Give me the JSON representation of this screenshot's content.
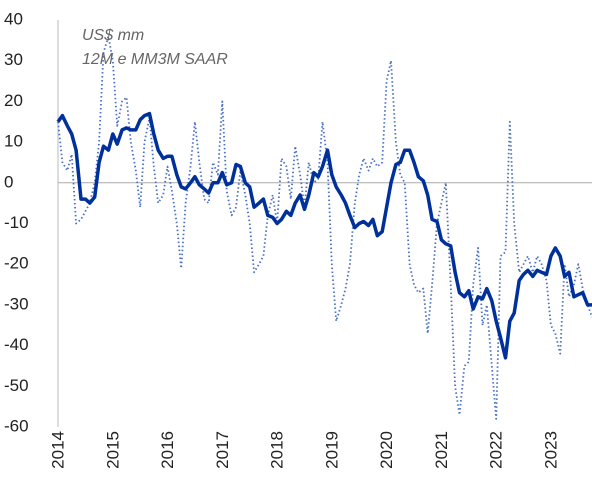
{
  "chart_data": {
    "type": "line",
    "subtitle": [
      "US$ mm",
      "12M e MM3M SAAR"
    ],
    "x": [
      2014,
      2014.08,
      2014.17,
      2014.25,
      2014.33,
      2014.42,
      2014.5,
      2014.58,
      2014.67,
      2014.75,
      2014.83,
      2014.92,
      2015,
      2015.08,
      2015.17,
      2015.25,
      2015.33,
      2015.42,
      2015.5,
      2015.58,
      2015.67,
      2015.75,
      2015.83,
      2015.92,
      2016,
      2016.08,
      2016.17,
      2016.25,
      2016.33,
      2016.42,
      2016.5,
      2016.58,
      2016.67,
      2016.75,
      2016.83,
      2016.92,
      2017,
      2017.08,
      2017.17,
      2017.25,
      2017.33,
      2017.42,
      2017.5,
      2017.58,
      2017.67,
      2017.75,
      2017.83,
      2017.92,
      2018,
      2018.08,
      2018.17,
      2018.25,
      2018.33,
      2018.42,
      2018.5,
      2018.58,
      2018.67,
      2018.75,
      2018.83,
      2018.92,
      2019,
      2019.08,
      2019.17,
      2019.25,
      2019.33,
      2019.42,
      2019.5,
      2019.58,
      2019.67,
      2019.75,
      2019.83,
      2019.92,
      2020,
      2020.08,
      2020.17,
      2020.25,
      2020.33,
      2020.42,
      2020.5,
      2020.58,
      2020.67,
      2020.75,
      2020.83,
      2020.92,
      2021,
      2021.08,
      2021.17,
      2021.25,
      2021.33,
      2021.42,
      2021.5,
      2021.58,
      2021.67,
      2021.75,
      2021.83,
      2021.92,
      2022,
      2022.08,
      2022.17,
      2022.25,
      2022.33,
      2022.42,
      2022.5,
      2022.58,
      2022.67,
      2022.75,
      2022.83,
      2022.92,
      2023,
      2023.08,
      2023.17,
      2023.25,
      2023.33,
      2023.42,
      2023.5,
      2023.58,
      2023.67,
      2023.75
    ],
    "series": [
      {
        "color": "#4a6fc4",
        "dash": true,
        "values": [
          15,
          5,
          3,
          7,
          -10,
          -9,
          -7,
          -5,
          0,
          10,
          32,
          36,
          30,
          14,
          20,
          21,
          10,
          3,
          -6,
          10,
          16,
          4,
          -5,
          -3,
          4,
          -2,
          -10,
          -21,
          -5,
          4,
          15,
          5,
          -4,
          -5,
          5,
          2,
          20,
          -2,
          -8,
          -6,
          3,
          -3,
          -10,
          -22,
          -20,
          -18,
          -8,
          -3,
          -10,
          6,
          4,
          -4,
          9,
          2,
          -6,
          5,
          0,
          1,
          15,
          5,
          -20,
          -34,
          -30,
          -26,
          -20,
          -5,
          2,
          6,
          3,
          6,
          4,
          5,
          25,
          30,
          10,
          2,
          0,
          -20,
          -25,
          -27,
          -26,
          -37,
          -25,
          -10,
          -5,
          0,
          -25,
          -50,
          -57,
          -45,
          -44,
          -25,
          -16,
          -35,
          -30,
          -45,
          -58,
          -18,
          -17,
          15,
          -10,
          -22,
          -20,
          -18,
          -22,
          -18,
          -20,
          -24,
          -35,
          -37,
          -42,
          -20,
          -28,
          -25,
          -20,
          -26,
          -30,
          -33
        ]
      },
      {
        "color": "#00309a",
        "dash": false,
        "values": [
          15,
          16.5,
          14,
          12,
          8,
          -4,
          -4,
          -5,
          -3.5,
          5,
          9,
          8,
          12,
          9.5,
          13,
          13.5,
          13,
          13,
          15.5,
          16.5,
          17,
          12,
          8,
          6,
          6.5,
          6.5,
          2,
          -1,
          -1.5,
          0,
          1.5,
          -0.5,
          -1.5,
          -2.5,
          0,
          0,
          2.5,
          -0.5,
          0,
          4.5,
          4,
          0,
          -1,
          -6,
          -5,
          -4,
          -8,
          -8.5,
          -10,
          -9,
          -7,
          -8,
          -5,
          -3,
          -6.5,
          -3,
          2.5,
          1.5,
          4,
          8,
          2,
          -1,
          -3,
          -5,
          -8,
          -11,
          -10,
          -9.5,
          -10.5,
          -9,
          -13,
          -12,
          -6,
          0,
          4.5,
          5,
          8,
          8,
          5,
          1.5,
          0.5,
          -3,
          -9,
          -9.5,
          -14,
          -15,
          -15.5,
          -22,
          -27,
          -28,
          -26.5,
          -31,
          -28,
          -28.5,
          -26,
          -29,
          -34,
          -38,
          -43,
          -34,
          -32,
          -24,
          -22.5,
          -21.5,
          -23,
          -21.5,
          -22,
          -22.5,
          -18,
          -16,
          -18,
          -23,
          -22,
          -28,
          -27.5,
          -27,
          -30,
          -30
        ]
      }
    ],
    "xlim": [
      2014,
      2023.75
    ],
    "xticks": [
      2014,
      2015,
      2016,
      2017,
      2018,
      2019,
      2020,
      2021,
      2022,
      2023
    ],
    "ylim": [
      -60,
      40
    ],
    "yticks": [
      -60,
      -50,
      -40,
      -30,
      -20,
      -10,
      0,
      10,
      20,
      30,
      40
    ]
  }
}
